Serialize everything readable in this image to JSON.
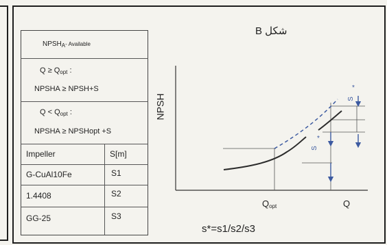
{
  "figure_title": "شکل B",
  "y_axis_label": "NPSH",
  "x_axis": {
    "q_label": "Q",
    "qopt_base": "Q",
    "qopt_sub": "opt"
  },
  "curve_labels": {
    "s_lower": "S",
    "s_upper": "S",
    "star": "*"
  },
  "conditions": {
    "heading_base": "NPSH",
    "heading_sub": "A",
    "heading_suffix": "- Available",
    "cond1_line1": "Q  ≥ Q",
    "cond1_line1_sub": "opt",
    "cond1_line1_tail": ":",
    "cond1_line2": "NPSHA ≥ NPSH+S",
    "cond2_line1": "Q  < Q",
    "cond2_line1_sub": "opt",
    "cond2_line1_tail": ":",
    "cond2_line2": "NPSHA ≥ NPSHopt +S"
  },
  "impeller_table": {
    "headers": [
      "Impeller",
      "S[m]"
    ],
    "rows": [
      {
        "material": "G-CuAl10Fe",
        "s": "S1"
      },
      {
        "material": "1.4408",
        "s": "S2"
      },
      {
        "material": "GG-25",
        "s": "S3"
      }
    ]
  },
  "formula": "s*=s1/s2/s3",
  "colors": {
    "frame": "#1d1d1d",
    "curve": "#2b2b2b",
    "dashed": "#3c5aa0",
    "arrow": "#3c5aa0",
    "grid": "#555555"
  }
}
